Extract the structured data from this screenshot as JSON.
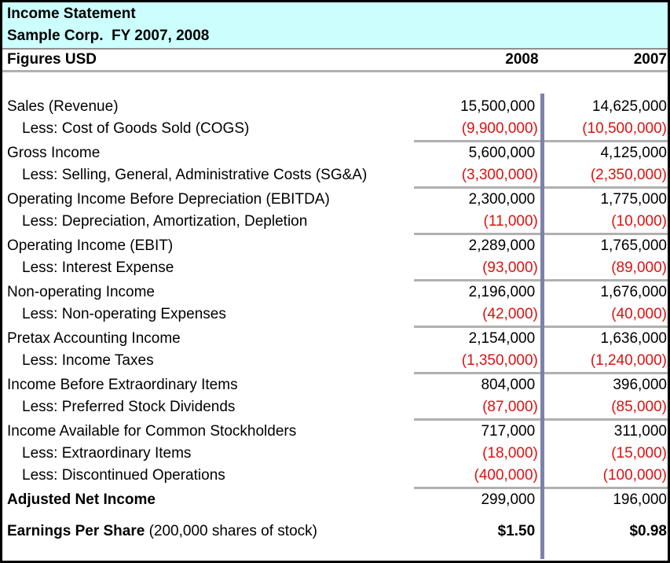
{
  "header": {
    "title": "Income Statement",
    "subtitle": "Sample Corp.  FY 2007, 2008"
  },
  "columns": {
    "label": "Figures USD",
    "y2008": "2008",
    "y2007": "2007"
  },
  "rows": [
    {
      "label": "Sales (Revenue)",
      "v2008": "15,500,000",
      "v2007": "14,625,000",
      "indent": false,
      "negative": false,
      "separator_after": false
    },
    {
      "label": "Less: Cost of Goods Sold (COGS)",
      "v2008": "(9,900,000)",
      "v2007": "(10,500,000)",
      "indent": true,
      "negative": true,
      "separator_after": true
    },
    {
      "label": "Gross Income",
      "v2008": "5,600,000",
      "v2007": "4,125,000",
      "indent": false,
      "negative": false,
      "separator_after": false
    },
    {
      "label": "Less: Selling, General, Administrative Costs (SG&A)",
      "v2008": "(3,300,000)",
      "v2007": "(2,350,000)",
      "indent": true,
      "negative": true,
      "separator_after": true
    },
    {
      "label": "Operating Income Before Depreciation (EBITDA)",
      "v2008": "2,300,000",
      "v2007": "1,775,000",
      "indent": false,
      "negative": false,
      "separator_after": false
    },
    {
      "label": "Less: Depreciation, Amortization, Depletion",
      "v2008": "(11,000)",
      "v2007": "(10,000)",
      "indent": true,
      "negative": true,
      "separator_after": true
    },
    {
      "label": "Operating Income (EBIT)",
      "v2008": "2,289,000",
      "v2007": "1,765,000",
      "indent": false,
      "negative": false,
      "separator_after": false
    },
    {
      "label": "Less: Interest Expense",
      "v2008": "(93,000)",
      "v2007": "(89,000)",
      "indent": true,
      "negative": true,
      "separator_after": true
    },
    {
      "label": "Non-operating Income",
      "v2008": "2,196,000",
      "v2007": "1,676,000",
      "indent": false,
      "negative": false,
      "separator_after": false
    },
    {
      "label": "Less: Non-operating Expenses",
      "v2008": "(42,000)",
      "v2007": "(40,000)",
      "indent": true,
      "negative": true,
      "separator_after": true
    },
    {
      "label": "Pretax Accounting Income",
      "v2008": "2,154,000",
      "v2007": "1,636,000",
      "indent": false,
      "negative": false,
      "separator_after": false
    },
    {
      "label": "Less: Income Taxes",
      "v2008": "(1,350,000)",
      "v2007": "(1,240,000)",
      "indent": true,
      "negative": true,
      "separator_after": true
    },
    {
      "label": "Income Before Extraordinary Items",
      "v2008": "804,000",
      "v2007": "396,000",
      "indent": false,
      "negative": false,
      "separator_after": false
    },
    {
      "label": "Less: Preferred Stock Dividends",
      "v2008": "(87,000)",
      "v2007": "(85,000)",
      "indent": true,
      "negative": true,
      "separator_after": true
    },
    {
      "label": "Income Available for Common Stockholders",
      "v2008": "717,000",
      "v2007": "311,000",
      "indent": false,
      "negative": false,
      "separator_after": false
    },
    {
      "label": "Less: Extraordinary Items",
      "v2008": "(18,000)",
      "v2007": "(15,000)",
      "indent": true,
      "negative": true,
      "separator_after": false
    },
    {
      "label": "Less: Discontinued Operations",
      "v2008": "(400,000)",
      "v2007": "(100,000)",
      "indent": true,
      "negative": true,
      "separator_after": true
    },
    {
      "label": "Adjusted Net Income",
      "v2008": "299,000",
      "v2007": "196,000",
      "indent": false,
      "negative": false,
      "separator_after": false,
      "bold_label": true
    },
    {
      "label": "Earnings Per Share",
      "label_suffix": "(200,000 shares of stock)",
      "v2008": "$1.50",
      "v2007": "$0.98",
      "indent": false,
      "negative": false,
      "separator_after": false,
      "bold_label": true,
      "bold_values": true,
      "gap_before": true
    }
  ],
  "colors": {
    "header_bg": "#ccfefe",
    "negative": "#dd1111",
    "separator_gray": "#b0b0b0",
    "column_rule_blue": "#7d82aa",
    "border_black": "#000000"
  }
}
